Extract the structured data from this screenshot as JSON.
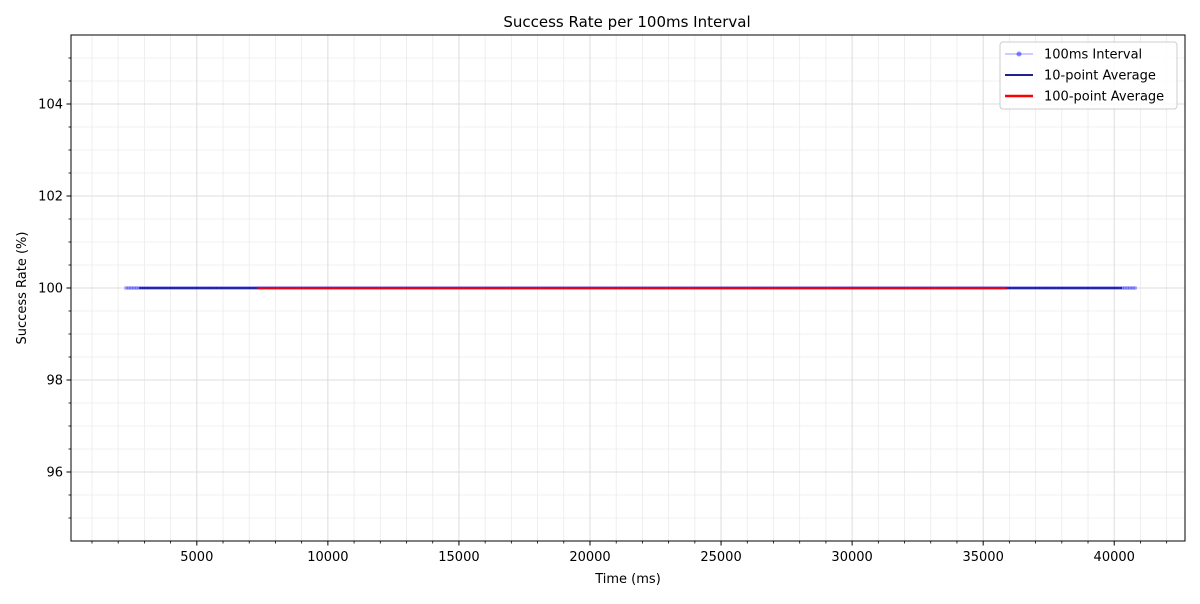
{
  "chart_data": {
    "type": "line",
    "title": "Success Rate per 100ms Interval",
    "xlabel": "Time (ms)",
    "ylabel": "Success Rate (%)",
    "xlim": [
      200,
      42700
    ],
    "ylim": [
      94.5,
      105.5
    ],
    "x_ticks": [
      5000,
      10000,
      15000,
      20000,
      25000,
      30000,
      35000,
      40000
    ],
    "y_ticks": [
      96,
      98,
      100,
      102,
      104
    ],
    "grid": true,
    "legend_position": "top-right",
    "series": [
      {
        "name": "100ms Interval",
        "x_start": 2300,
        "x_end": 40800,
        "x_step": 100,
        "value": 100,
        "color": "#0000ff",
        "style": "line-markers-faint"
      },
      {
        "name": "10-point Average",
        "x_start": 2800,
        "x_end": 40300,
        "value": 100,
        "color": "#000080",
        "style": "line"
      },
      {
        "name": "100-point Average",
        "x_start": 7300,
        "x_end": 35900,
        "value": 100,
        "color": "#ff0000",
        "style": "line-thick"
      }
    ]
  }
}
